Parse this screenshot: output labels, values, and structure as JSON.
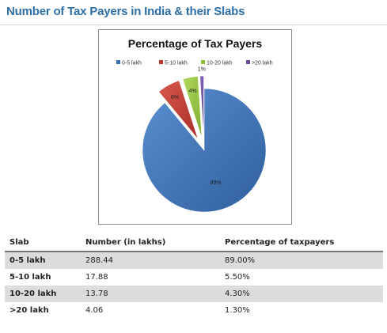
{
  "page": {
    "heading": "Number of Tax Payers in India & their Slabs"
  },
  "chart_data": {
    "type": "pie",
    "title": "Percentage of Tax Payers",
    "categories": [
      "0-5 lakh",
      "5-10 lakh",
      "10-20 lakh",
      ">20 lakh"
    ],
    "values": [
      89,
      6,
      4,
      1
    ],
    "data_labels": [
      "89%",
      "6%",
      "4%",
      "1%"
    ],
    "colors": [
      "#3c6fb0",
      "#c0392b",
      "#8fbf3a",
      "#6a4a9c"
    ],
    "exploded": true,
    "legend_position": "top"
  },
  "table": {
    "headers": [
      "Slab",
      "Number (in lakhs)",
      "Percentage of taxpayers"
    ],
    "rows": [
      [
        "0-5 lakh",
        "288.44",
        "89.00%"
      ],
      [
        "5-10 lakh",
        "17.88",
        "5.50%"
      ],
      [
        "10-20 lakh",
        "13.78",
        "4.30%"
      ],
      [
        ">20 lakh",
        "4.06",
        "1.30%"
      ]
    ]
  }
}
